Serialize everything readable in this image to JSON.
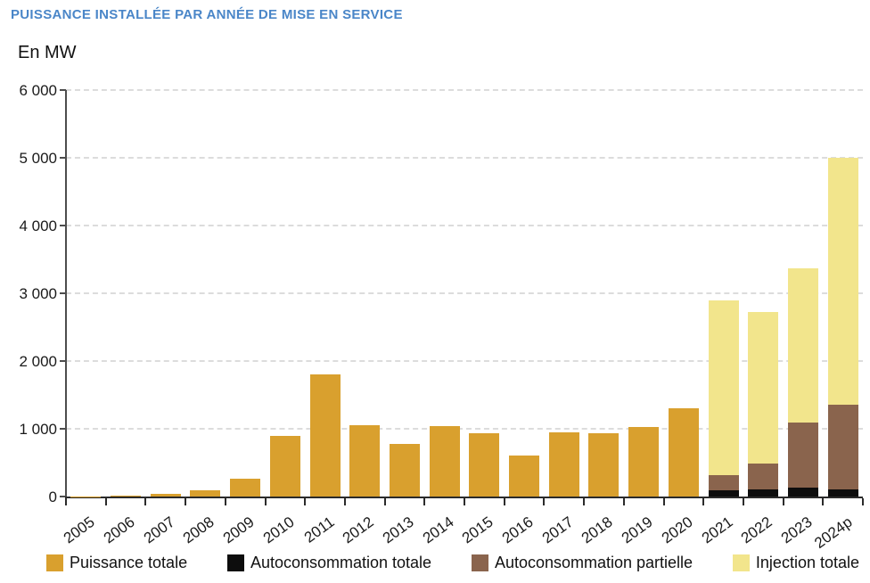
{
  "header": {
    "title": "PUISSANCE INSTALLÉE PAR ANNÉE DE MISE EN SERVICE",
    "unit_label": "En MW"
  },
  "colors": {
    "title_blue": "#4a86c8",
    "puissance_totale": "#d9a02e",
    "autoconsommation_totale": "#0d0d0d",
    "autoconsommation_partielle": "#8a644d",
    "injection_totale": "#f2e58c",
    "gridline": "#dcdcdc",
    "axis": "#4d4d4d"
  },
  "chart_data": {
    "type": "bar",
    "stacked": true,
    "title": "PUISSANCE INSTALLÉE PAR ANNÉE DE MISE EN SERVICE",
    "ylabel": "En MW",
    "xlabel": "",
    "ylim": [
      0,
      6000
    ],
    "grid": "horizontal dashed",
    "legend_position": "bottom",
    "yticks": [
      {
        "value": 0,
        "label": "0"
      },
      {
        "value": 1000,
        "label": "1 000"
      },
      {
        "value": 2000,
        "label": "2 000"
      },
      {
        "value": 3000,
        "label": "3 000"
      },
      {
        "value": 4000,
        "label": "4 000"
      },
      {
        "value": 5000,
        "label": "5 000"
      },
      {
        "value": 6000,
        "label": "6 000"
      }
    ],
    "categories": [
      "2005",
      "2006",
      "2007",
      "2008",
      "2009",
      "2010",
      "2011",
      "2012",
      "2013",
      "2014",
      "2015",
      "2016",
      "2017",
      "2018",
      "2019",
      "2020",
      "2021",
      "2022",
      "2023",
      "2024p"
    ],
    "series": [
      {
        "name": "Puissance totale",
        "color_key": "puissance_totale",
        "values": [
          5,
          10,
          40,
          95,
          260,
          890,
          1800,
          1055,
          780,
          1035,
          935,
          610,
          945,
          935,
          1025,
          1300,
          0,
          0,
          0,
          0
        ]
      },
      {
        "name": "Autoconsommation totale",
        "color_key": "autoconsommation_totale",
        "values": [
          0,
          0,
          0,
          0,
          0,
          0,
          0,
          0,
          0,
          0,
          0,
          0,
          0,
          0,
          0,
          0,
          90,
          110,
          135,
          110
        ]
      },
      {
        "name": "Autoconsommation partielle",
        "color_key": "autoconsommation_partielle",
        "values": [
          0,
          0,
          0,
          0,
          0,
          0,
          0,
          0,
          0,
          0,
          0,
          0,
          0,
          0,
          0,
          0,
          220,
          380,
          955,
          1245
        ]
      },
      {
        "name": "Injection totale",
        "color_key": "injection_totale",
        "values": [
          0,
          0,
          0,
          0,
          0,
          0,
          0,
          0,
          0,
          0,
          0,
          0,
          0,
          0,
          0,
          0,
          2590,
          2230,
          2280,
          3645
        ]
      }
    ],
    "stacked_totals": {
      "2021": 2900,
      "2022": 2720,
      "2023": 3370,
      "2024p": 5000
    }
  }
}
